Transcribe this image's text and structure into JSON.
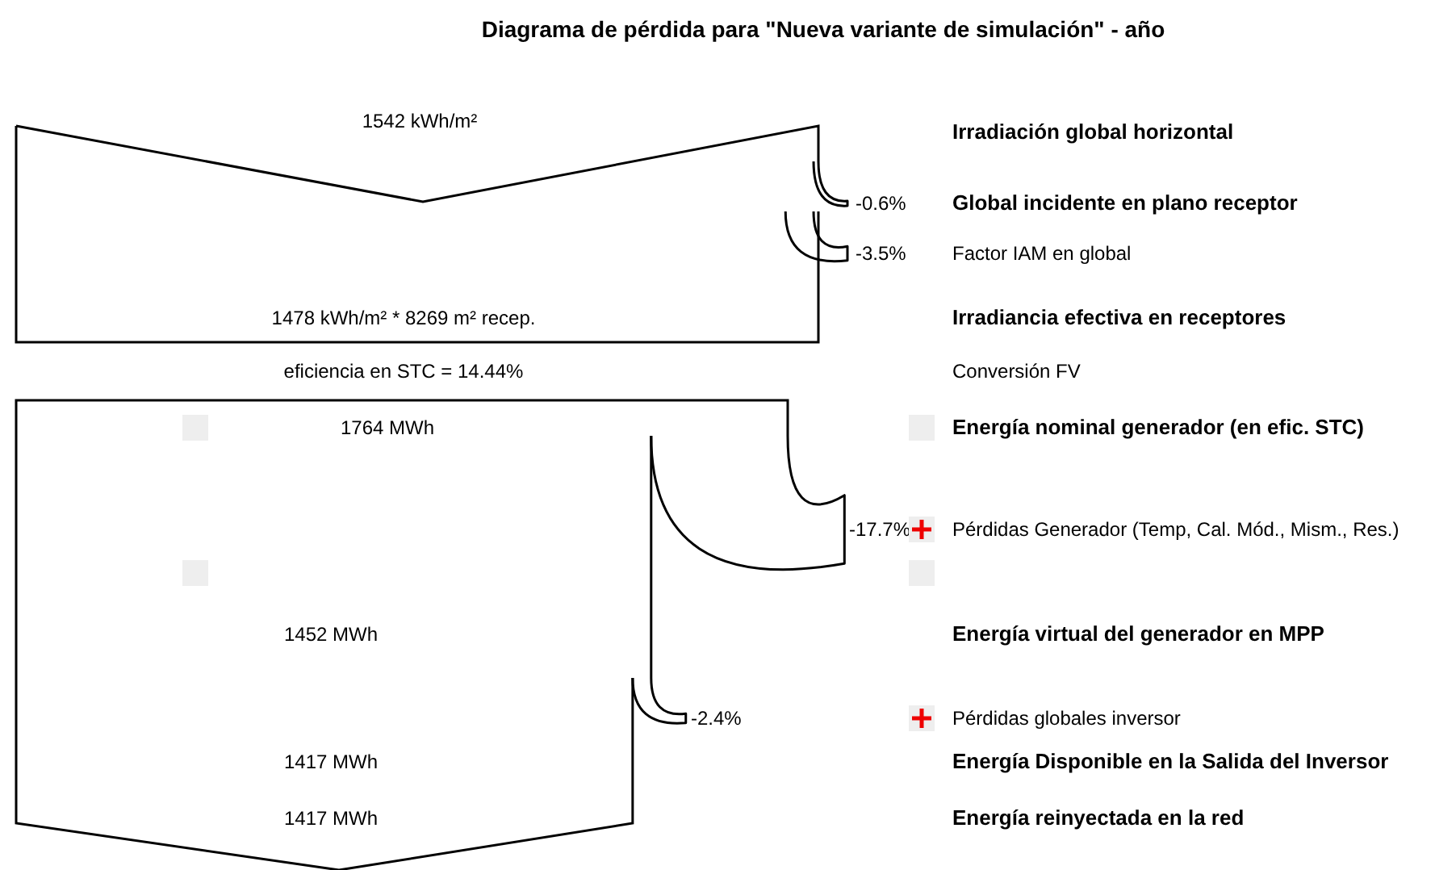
{
  "chart_data": {
    "type": "other",
    "title": "Diagrama de pérdida para \"Nueva variante de simulación\"  -  año",
    "categories": [
      "Irradiación global horizontal",
      "Global incidente en plano receptor",
      "Factor IAM en global",
      "Irradiancia efectiva en receptores",
      "Conversión FV",
      "Energía nominal generador (en efic. STC)",
      "Pérdidas Generador (Temp, Cal. Mód., Mism., Res.)",
      "Energía virtual del generador en MPP",
      "Pérdidas globales inversor",
      "Energía Disponible en la Salida del Inversor",
      "Energía reinyectada en la red"
    ],
    "values": [
      null,
      -0.6,
      -3.5,
      null,
      null,
      null,
      -17.7,
      null,
      -2.4,
      null,
      null
    ],
    "value_labels": [
      null,
      "-0.6%",
      "-3.5%",
      null,
      null,
      null,
      "-17.7%",
      null,
      "-2.4%",
      null,
      null
    ],
    "annotations": [
      "1542 kWh/m²",
      null,
      null,
      "1478 kWh/m² * 8269 m² recep.",
      "eficiencia en STC = 14.44%",
      "1764 MWh",
      null,
      "1452 MWh",
      null,
      "1417 MWh",
      "1417 MWh"
    ]
  }
}
